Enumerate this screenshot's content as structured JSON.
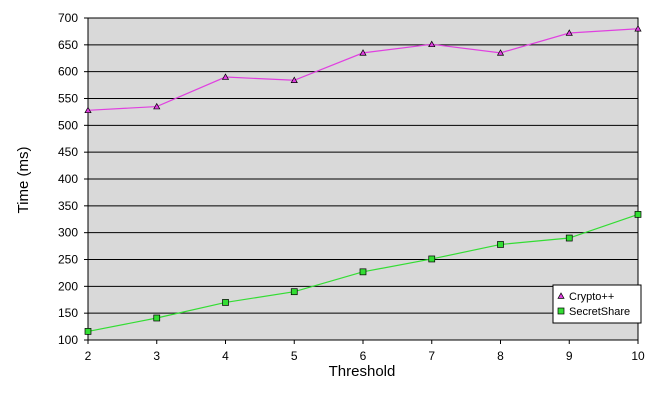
{
  "chart_data": {
    "type": "line",
    "title": "",
    "xlabel": "Threshold",
    "ylabel": "Time (ms)",
    "x": [
      2,
      3,
      4,
      5,
      6,
      7,
      8,
      9,
      10
    ],
    "xlim": [
      2,
      10
    ],
    "ylim": [
      100,
      700
    ],
    "ytick_step": 50,
    "grid": "horizontal",
    "plot_background": "#d9d9d9",
    "legend_position": "bottom-right",
    "series": [
      {
        "name": "Crypto++",
        "color": "#e040e0",
        "marker": "triangle",
        "values": [
          528,
          535,
          590,
          584,
          635,
          651,
          635,
          672,
          680
        ]
      },
      {
        "name": "SecretShare",
        "color": "#33dd33",
        "marker": "square",
        "values": [
          116,
          141,
          170,
          190,
          227,
          251,
          278,
          290,
          334
        ]
      }
    ]
  }
}
